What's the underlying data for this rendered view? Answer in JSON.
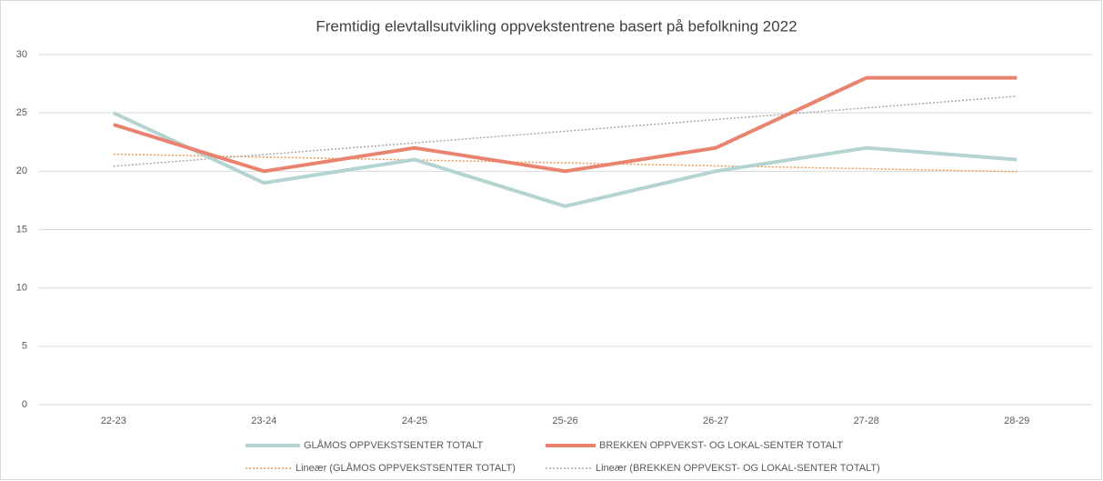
{
  "chart_data": {
    "type": "line",
    "title": "Fremtidig elevtallsutvikling oppvekstentrene basert på befolkning 2022",
    "categories": [
      "22-23",
      "23-24",
      "24-25",
      "25-26",
      "26-27",
      "27-28",
      "28-29"
    ],
    "series": [
      {
        "name": "GLÅMOS OPPVEKSTSENTER  TOTALT",
        "color": "#b3d4d1",
        "values": [
          25,
          19,
          21,
          17,
          20,
          22,
          21
        ]
      },
      {
        "name": "BREKKEN OPPVEKST- OG LOKAL-SENTER TOTALT",
        "color": "#e9836f",
        "values": [
          24,
          20,
          22,
          20,
          22,
          28,
          28
        ]
      }
    ],
    "trendlines": [
      {
        "name": "Lineær (GLÅMOS OPPVEKSTSENTER  TOTALT)",
        "series": 0,
        "color": "#ee9a55"
      },
      {
        "name": "Lineær (BREKKEN OPPVEKST- OG LOKAL-SENTER TOTALT)",
        "series": 1,
        "color": "#a8a8a8"
      }
    ],
    "ylim": [
      0,
      30
    ],
    "yticks": [
      0,
      5,
      10,
      15,
      20,
      25,
      30
    ],
    "grid": true,
    "legend": "bottom"
  }
}
